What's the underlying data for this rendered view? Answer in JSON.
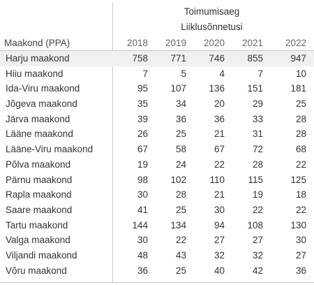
{
  "header": {
    "title": "Toimumisaeg",
    "subtitle": "Liiklusõnnetusi",
    "row_header": "Maakond (PPA)",
    "years": [
      "2018",
      "2019",
      "2020",
      "2021",
      "2022"
    ]
  },
  "rows": [
    {
      "name": "Harju maakond",
      "values": [
        "758",
        "771",
        "746",
        "855",
        "947"
      ]
    },
    {
      "name": "Hiiu maakond",
      "values": [
        "7",
        "5",
        "4",
        "7",
        "10"
      ]
    },
    {
      "name": "Ida-Viru maakond",
      "values": [
        "95",
        "107",
        "136",
        "151",
        "181"
      ]
    },
    {
      "name": "Jõgeva maakond",
      "values": [
        "35",
        "34",
        "20",
        "29",
        "25"
      ]
    },
    {
      "name": "Järva maakond",
      "values": [
        "39",
        "36",
        "36",
        "33",
        "28"
      ]
    },
    {
      "name": "Lääne maakond",
      "values": [
        "26",
        "25",
        "21",
        "31",
        "28"
      ]
    },
    {
      "name": "Lääne-Viru maakond",
      "values": [
        "67",
        "58",
        "67",
        "72",
        "68"
      ]
    },
    {
      "name": "Põlva maakond",
      "values": [
        "19",
        "24",
        "22",
        "28",
        "22"
      ]
    },
    {
      "name": "Pärnu maakond",
      "values": [
        "98",
        "102",
        "110",
        "115",
        "125"
      ]
    },
    {
      "name": "Rapla maakond",
      "values": [
        "30",
        "28",
        "21",
        "19",
        "18"
      ]
    },
    {
      "name": "Saare maakond",
      "values": [
        "41",
        "25",
        "30",
        "22",
        "22"
      ]
    },
    {
      "name": "Tartu maakond",
      "values": [
        "144",
        "134",
        "94",
        "108",
        "130"
      ]
    },
    {
      "name": "Valga maakond",
      "values": [
        "30",
        "22",
        "27",
        "27",
        "30"
      ]
    },
    {
      "name": "Viljandi maakond",
      "values": [
        "48",
        "43",
        "32",
        "32",
        "27"
      ]
    },
    {
      "name": "Võru maakond",
      "values": [
        "36",
        "25",
        "40",
        "42",
        "36"
      ]
    }
  ],
  "colors": {
    "highlight_row": "#f0f0f0",
    "grid_line": "#c9c9c9",
    "text": "#333333"
  }
}
